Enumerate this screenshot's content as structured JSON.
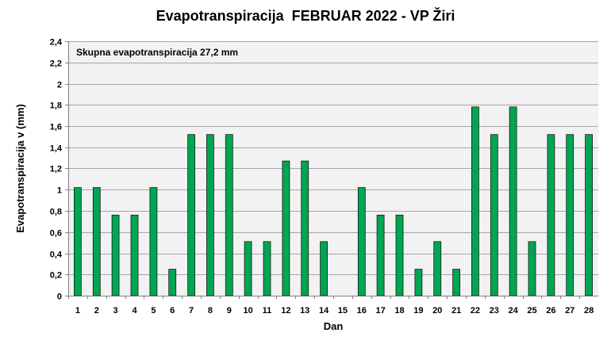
{
  "chart_data": {
    "type": "bar",
    "title": "Evapotranspiracija  FEBRUAR 2022 - VP Žiri",
    "xlabel": "Dan",
    "ylabel": "Evapotranspiracija v  (mm)",
    "annotation": "Skupna evapotranspiracija  27,2 mm",
    "ylim": [
      0,
      2.4
    ],
    "ytick_step": 0.2,
    "yticks": [
      "0",
      "0,2",
      "0,4",
      "0,6",
      "0,8",
      "1",
      "1,2",
      "1,4",
      "1,6",
      "1,8",
      "2",
      "2,2",
      "2,4"
    ],
    "grid": true,
    "bar_color": "#00a651",
    "plot_background": "#f2f2f2",
    "categories": [
      "1",
      "2",
      "3",
      "4",
      "5",
      "6",
      "7",
      "8",
      "9",
      "10",
      "11",
      "12",
      "13",
      "14",
      "15",
      "16",
      "17",
      "18",
      "19",
      "20",
      "21",
      "22",
      "23",
      "24",
      "25",
      "26",
      "27",
      "28"
    ],
    "values": [
      1.02,
      1.02,
      0.76,
      0.76,
      1.02,
      0.25,
      1.52,
      1.52,
      1.52,
      0.51,
      0.51,
      1.27,
      1.27,
      0.51,
      0,
      1.02,
      0.76,
      0.76,
      0.25,
      0.51,
      0.25,
      1.78,
      1.52,
      1.78,
      0.51,
      1.52,
      1.52,
      1.52
    ]
  }
}
